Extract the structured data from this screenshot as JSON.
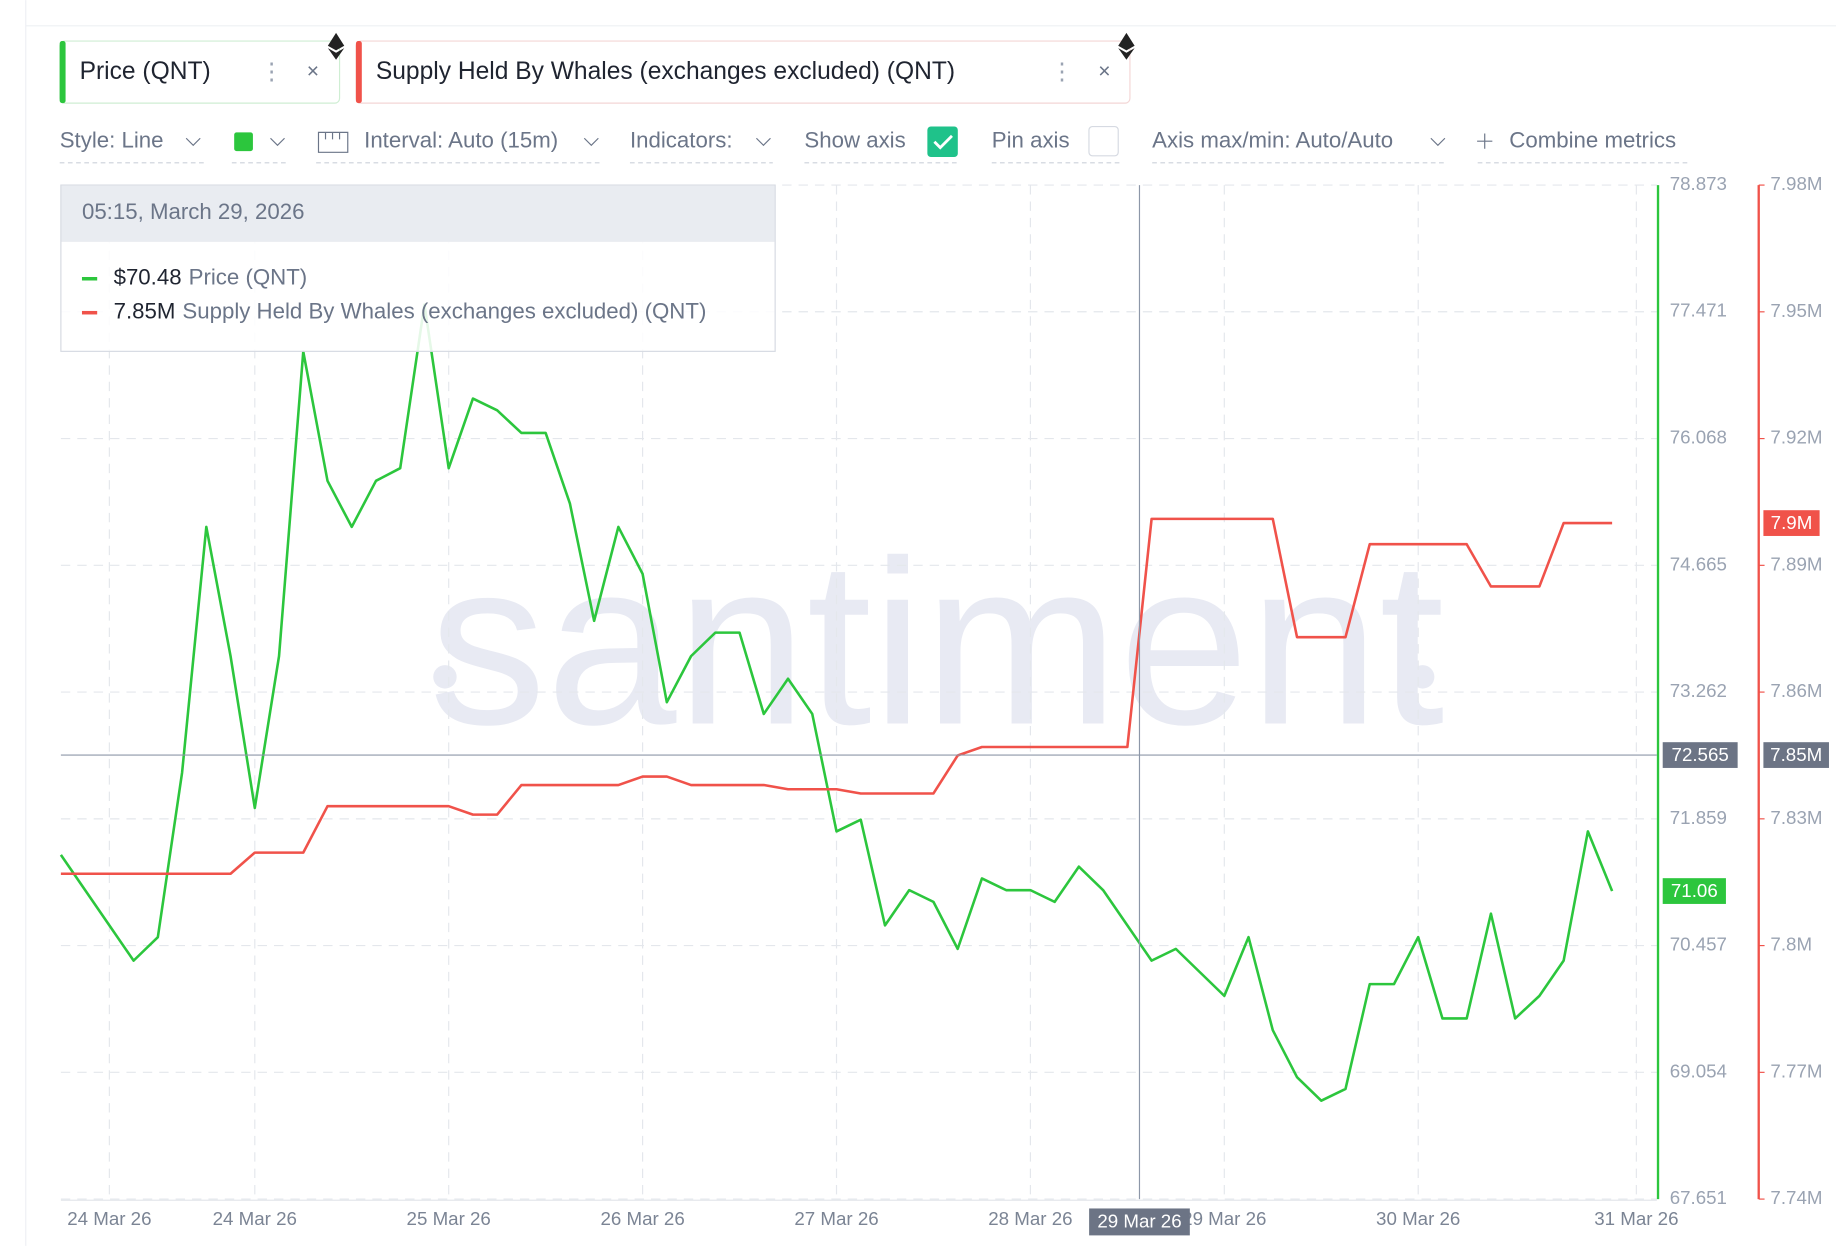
{
  "toolbar": {
    "metrics": [
      "Price (QNT)",
      "Supply Held By Whales (exchanges excluded) (QNT)"
    ],
    "style": "Style: Line",
    "interval": "Interval: Auto (15m)",
    "indicators": "Indicators:",
    "show_axis": "Show axis",
    "pin_axis": "Pin axis",
    "axis_maxmin": "Axis max/min: Auto/Auto",
    "combine": "Combine metrics"
  },
  "chart_data": {
    "type": "line",
    "watermark": "santiment",
    "x": [
      null,
      null,
      "24 Mar 26",
      null,
      null,
      null,
      null,
      null,
      "24 Mar 26",
      null,
      null,
      null,
      null,
      null,
      null,
      null,
      "25 Mar 26",
      null,
      null,
      null,
      null,
      null,
      null,
      null,
      "26 Mar 26",
      null,
      null,
      null,
      null,
      null,
      null,
      null,
      "27 Mar 26",
      null,
      null,
      null,
      null,
      null,
      null,
      null,
      "28 Mar 26",
      null,
      null,
      null,
      null,
      null,
      null,
      null,
      "29 Mar 26",
      null,
      null,
      null,
      null,
      null,
      null,
      null,
      "30 Mar 26",
      null,
      null,
      null,
      null,
      null,
      null,
      null,
      null,
      "31 Mar 26"
    ],
    "series": [
      {
        "name": "Price (QNT)",
        "color": "#2cc63d",
        "values": [
          71.46,
          71.07,
          70.68,
          70.29,
          70.55,
          72.37,
          75.09,
          73.66,
          71.98,
          73.66,
          77.03,
          75.6,
          75.09,
          75.6,
          75.74,
          77.55,
          75.74,
          76.51,
          76.38,
          76.13,
          76.13,
          75.35,
          74.05,
          75.09,
          74.57,
          73.15,
          73.66,
          73.92,
          73.92,
          73.02,
          73.41,
          73.02,
          71.72,
          71.85,
          70.68,
          71.07,
          70.94,
          70.42,
          71.2,
          71.07,
          71.07,
          70.94,
          71.33,
          71.07,
          70.68,
          70.29,
          70.42,
          70.16,
          69.9,
          70.55,
          69.52,
          69.0,
          68.74,
          68.87,
          70.03,
          70.03,
          70.55,
          69.65,
          69.65,
          70.81,
          69.65,
          69.9,
          70.29,
          71.72,
          71.06,
          null
        ]
      },
      {
        "name": "Supply Held By Whales (exchanges excluded) (QNT)",
        "color": "#f0524a",
        "axis": "y2",
        "last_value_label": "7.9M",
        "values": [
          7817000,
          7817000,
          7817000,
          7817000,
          7817000,
          7817000,
          7817000,
          7817000,
          7822000,
          7822000,
          7822000,
          7833000,
          7833000,
          7833000,
          7833000,
          7833000,
          7833000,
          7831000,
          7831000,
          7838000,
          7838000,
          7838000,
          7838000,
          7838000,
          7840000,
          7840000,
          7838000,
          7838000,
          7838000,
          7838000,
          7837000,
          7837000,
          7837000,
          7836000,
          7836000,
          7836000,
          7836000,
          7845000,
          7847000,
          7847000,
          7847000,
          7847000,
          7847000,
          7847000,
          7847000,
          7901000,
          7901000,
          7901000,
          7901000,
          7901000,
          7901000,
          7873000,
          7873000,
          7873000,
          7895000,
          7895000,
          7895000,
          7895000,
          7895000,
          7885000,
          7885000,
          7885000,
          7900000,
          7900000,
          7900000,
          null
        ]
      }
    ],
    "ylim": [
      67.651,
      78.873
    ],
    "yticks": [
      78.873,
      77.471,
      76.068,
      74.665,
      73.262,
      71.859,
      70.457,
      69.054,
      67.651
    ],
    "y2lim": [
      7740000,
      7980000
    ],
    "y2ticks": [
      {
        "value": 7980000,
        "label": "7.98M"
      },
      {
        "value": 7950000,
        "label": "7.95M"
      },
      {
        "value": 7920000,
        "label": "7.92M"
      },
      {
        "value": 7890000,
        "label": "7.89M"
      },
      {
        "value": 7860000,
        "label": "7.86M"
      },
      {
        "value": 7830000,
        "label": "7.83M"
      },
      {
        "value": 7800000,
        "label": "7.8M"
      },
      {
        "value": 7770000,
        "label": "7.77M"
      },
      {
        "value": 7740000,
        "label": "7.74M"
      }
    ],
    "grid": true,
    "crosshair": {
      "x_label": "29 Mar 26",
      "price_value": 72.565,
      "whale_label": "7.85M"
    },
    "tooltip": {
      "time": "05:15, March 29, 2026",
      "price": "$70.48",
      "whale": "7.85M"
    }
  }
}
